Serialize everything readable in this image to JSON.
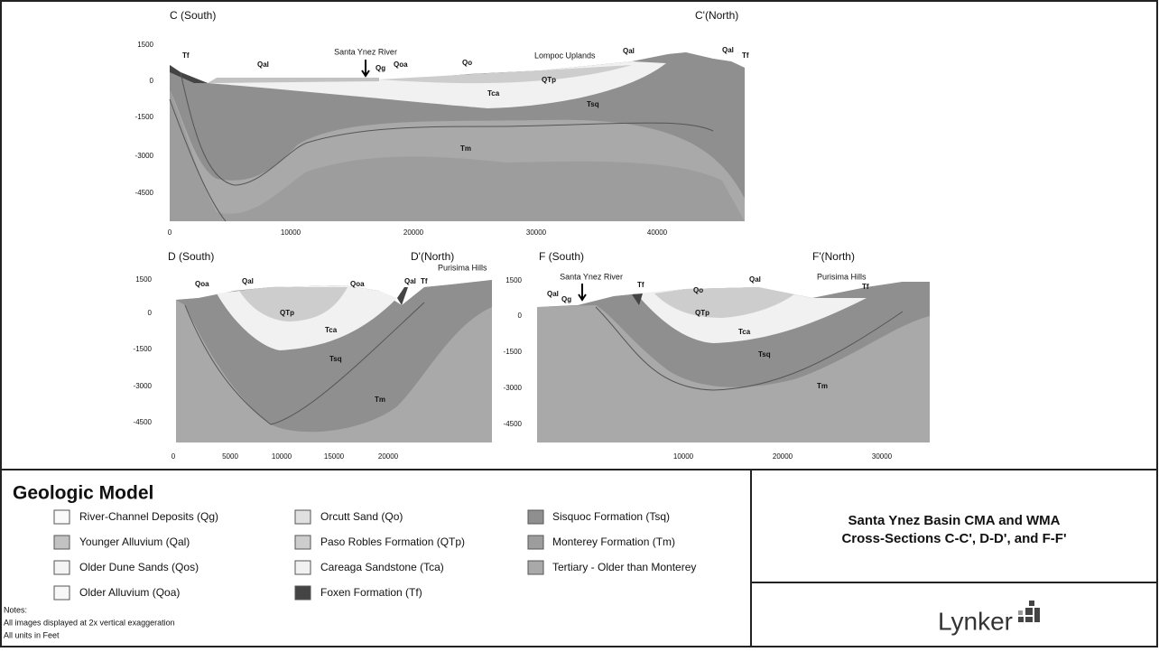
{
  "sections": [
    {
      "title_left": "C (South)",
      "title_right": "C'(North)",
      "yticks": [
        1500,
        0,
        -1500,
        -3000,
        -4500
      ],
      "xticks": [
        0,
        10000,
        20000,
        30000,
        40000
      ],
      "labels": [
        "Tf",
        "Qal",
        "Santa Ynez River",
        "Qg",
        "Qoa",
        "Qo",
        "Lompoc Uplands",
        "QTp",
        "Tca",
        "Tsq",
        "Tm",
        "Qal",
        "Qal",
        "Tf"
      ]
    },
    {
      "title_left": "D (South)",
      "title_right": "D'(North)",
      "yticks": [
        1500,
        0,
        -1500,
        -3000,
        -4500
      ],
      "xticks": [
        0,
        5000,
        10000,
        15000,
        20000
      ],
      "labels": [
        "Qoa",
        "Qal",
        "QTp",
        "Tca",
        "Qoa",
        "Qal",
        "Tf",
        "Tsq",
        "Tm",
        "Purisima Hills"
      ]
    },
    {
      "title_left": "F (South)",
      "title_right": "F'(North)",
      "yticks": [
        1500,
        0,
        -1500,
        -3000,
        -4500
      ],
      "xticks": [
        10000,
        20000,
        30000
      ],
      "labels": [
        "Santa Ynez River",
        "Qal",
        "Qg",
        "Tf",
        "Qo",
        "Qal",
        "QTp",
        "Tca",
        "Tsq",
        "Tm",
        "Purisima Hills",
        "Tf"
      ]
    }
  ],
  "legend": {
    "title": "Geologic Model",
    "items": [
      "River-Channel Deposits (Qg)",
      "Younger Alluvium (Qal)",
      "Older Dune Sands (Qos)",
      "Older Alluvium (Qoa)",
      "Orcutt Sand (Qo)",
      "Paso Robles Formation (QTp)",
      "Careaga Sandstone (Tca)",
      "Foxen Formation (Tf)",
      "Sisquoc Formation (Tsq)",
      "Monterey Formation (Tm)",
      "Tertiary - Older than Monterey"
    ]
  },
  "notes": [
    "Notes:",
    "All images displayed at 2x vertical exaggeration",
    "All units in Feet"
  ],
  "title_block": {
    "lines": [
      "Santa Ynez Basin CMA and WMA",
      "Cross-Sections C-C', D-D', and F-F'"
    ],
    "logo": "Lynker"
  }
}
